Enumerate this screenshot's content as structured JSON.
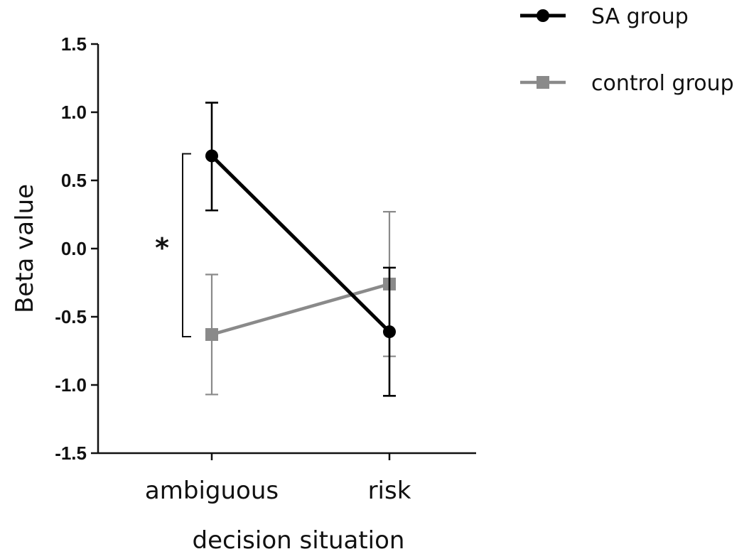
{
  "chart_data": {
    "type": "line",
    "categories": [
      "ambiguous",
      "risk"
    ],
    "xlabel": "decision situation",
    "ylabel": "Beta value",
    "ylim": [
      -1.5,
      1.5
    ],
    "yticks": [
      "1.5",
      "1.0",
      "0.5",
      "0.0",
      "-0.5",
      "-1.0",
      "-1.5"
    ],
    "ytick_values": [
      1.5,
      1.0,
      0.5,
      0.0,
      -0.5,
      -1.0,
      -1.5
    ],
    "grid": false,
    "legend_position": "top-right",
    "series": [
      {
        "name": "SA group",
        "marker": "circle",
        "color": "#000000",
        "values": [
          0.68,
          -0.61
        ],
        "err_upper": [
          1.07,
          -0.14
        ],
        "err_lower": [
          0.28,
          -1.08
        ]
      },
      {
        "name": "control group",
        "marker": "square",
        "color": "#8a8a8a",
        "values": [
          -0.63,
          -0.26
        ],
        "err_upper": [
          -0.19,
          0.27
        ],
        "err_lower": [
          -1.07,
          -0.79
        ]
      }
    ],
    "annotations": [
      {
        "text": "*",
        "type": "significance-bracket",
        "category": "ambiguous"
      }
    ]
  }
}
